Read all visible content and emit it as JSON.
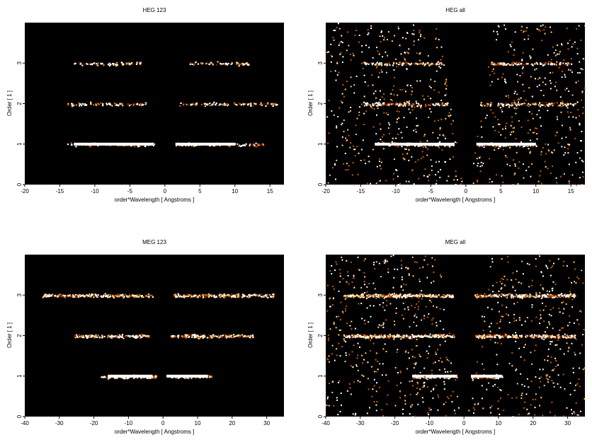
{
  "chart_data": [
    {
      "type": "heatmap",
      "title": "HEG 123",
      "xlabel": "order*Wavelength [ Angstroms ]",
      "ylabel": "Order [ 1 ]",
      "xlim": [
        -20,
        17
      ],
      "ylim": [
        0,
        4
      ],
      "xticks": [
        -20,
        -15,
        -10,
        -5,
        0,
        5,
        10,
        15
      ],
      "yticks": [
        0,
        1,
        2,
        3
      ],
      "colormap": [
        "#000000",
        "#7a1500",
        "#c95a00",
        "#ffd27a",
        "#ffffff"
      ],
      "bands": [
        {
          "order": 1,
          "segments": [
            [
              -14,
              -1.5
            ],
            [
              1.5,
              14
            ]
          ],
          "bright_core": [
            [
              -13,
              -1.6
            ],
            [
              1.5,
              10
            ]
          ]
        },
        {
          "order": 2,
          "segments": [
            [
              -14,
              -2.5
            ],
            [
              2,
              16
            ]
          ]
        },
        {
          "order": 3,
          "segments": [
            [
              -13,
              -3.5
            ],
            [
              3.5,
              12
            ]
          ]
        }
      ]
    },
    {
      "type": "heatmap",
      "title": "HEG all",
      "xlabel": "order*Wavelength [ Angstroms ]",
      "ylabel": "Order [ 1 ]",
      "xlim": [
        -20,
        17
      ],
      "ylim": [
        0,
        4
      ],
      "xticks": [
        -20,
        -15,
        -10,
        -5,
        0,
        5,
        10,
        15
      ],
      "yticks": [
        0,
        1,
        2,
        3
      ],
      "colormap": [
        "#000000",
        "#7a1500",
        "#c95a00",
        "#ffd27a",
        "#ffffff"
      ],
      "bands": [
        {
          "order": 1,
          "segments": [
            [
              -13,
              -1.5
            ],
            [
              1.5,
              10
            ]
          ],
          "bright_core": [
            [
              -13,
              -1.6
            ],
            [
              1.5,
              10
            ]
          ]
        },
        {
          "order": 2,
          "segments": [
            [
              -15,
              -2.5
            ],
            [
              2,
              16
            ]
          ]
        },
        {
          "order": 3,
          "segments": [
            [
              -15,
              -3.5
            ],
            [
              3.5,
              15
            ]
          ]
        }
      ]
    },
    {
      "type": "heatmap",
      "title": "MEG 123",
      "xlabel": "order*Wavelength [ Angstroms ]",
      "ylabel": "Order [ 1 ]",
      "xlim": [
        -40,
        35
      ],
      "ylim": [
        0,
        4
      ],
      "xticks": [
        -40,
        -30,
        -20,
        -10,
        0,
        10,
        20,
        30
      ],
      "yticks": [
        0,
        1,
        2,
        3
      ],
      "colormap": [
        "#000000",
        "#7a1500",
        "#c95a00",
        "#ffd27a",
        "#ffffff"
      ],
      "bands": [
        {
          "order": 1,
          "segments": [
            [
              -18,
              -2
            ],
            [
              2,
              14
            ]
          ],
          "bright_core": [
            [
              -16,
              -3
            ],
            [
              1,
              13
            ]
          ]
        },
        {
          "order": 2,
          "segments": [
            [
              -26,
              -4
            ],
            [
              2,
              26
            ]
          ]
        },
        {
          "order": 3,
          "segments": [
            [
              -35,
              -3
            ],
            [
              3,
              32
            ]
          ]
        }
      ]
    },
    {
      "type": "heatmap",
      "title": "MEG all",
      "xlabel": "order*Wavelength [ Angstroms ]",
      "ylabel": "Order [ 1 ]",
      "xlim": [
        -40,
        35
      ],
      "ylim": [
        0,
        4
      ],
      "xticks": [
        -40,
        -30,
        -20,
        -10,
        0,
        10,
        20,
        30
      ],
      "yticks": [
        0,
        1,
        2,
        3
      ],
      "colormap": [
        "#000000",
        "#7a1500",
        "#c95a00",
        "#ffd27a",
        "#ffffff"
      ],
      "bands": [
        {
          "order": 1,
          "segments": [
            [
              -15,
              -2
            ],
            [
              2,
              11
            ]
          ],
          "bright_core": [
            [
              -15,
              -2
            ],
            [
              2,
              11
            ]
          ]
        },
        {
          "order": 2,
          "segments": [
            [
              -35,
              -3
            ],
            [
              3,
              32
            ]
          ]
        },
        {
          "order": 3,
          "segments": [
            [
              -35,
              -3
            ],
            [
              3,
              32
            ]
          ]
        }
      ]
    }
  ]
}
